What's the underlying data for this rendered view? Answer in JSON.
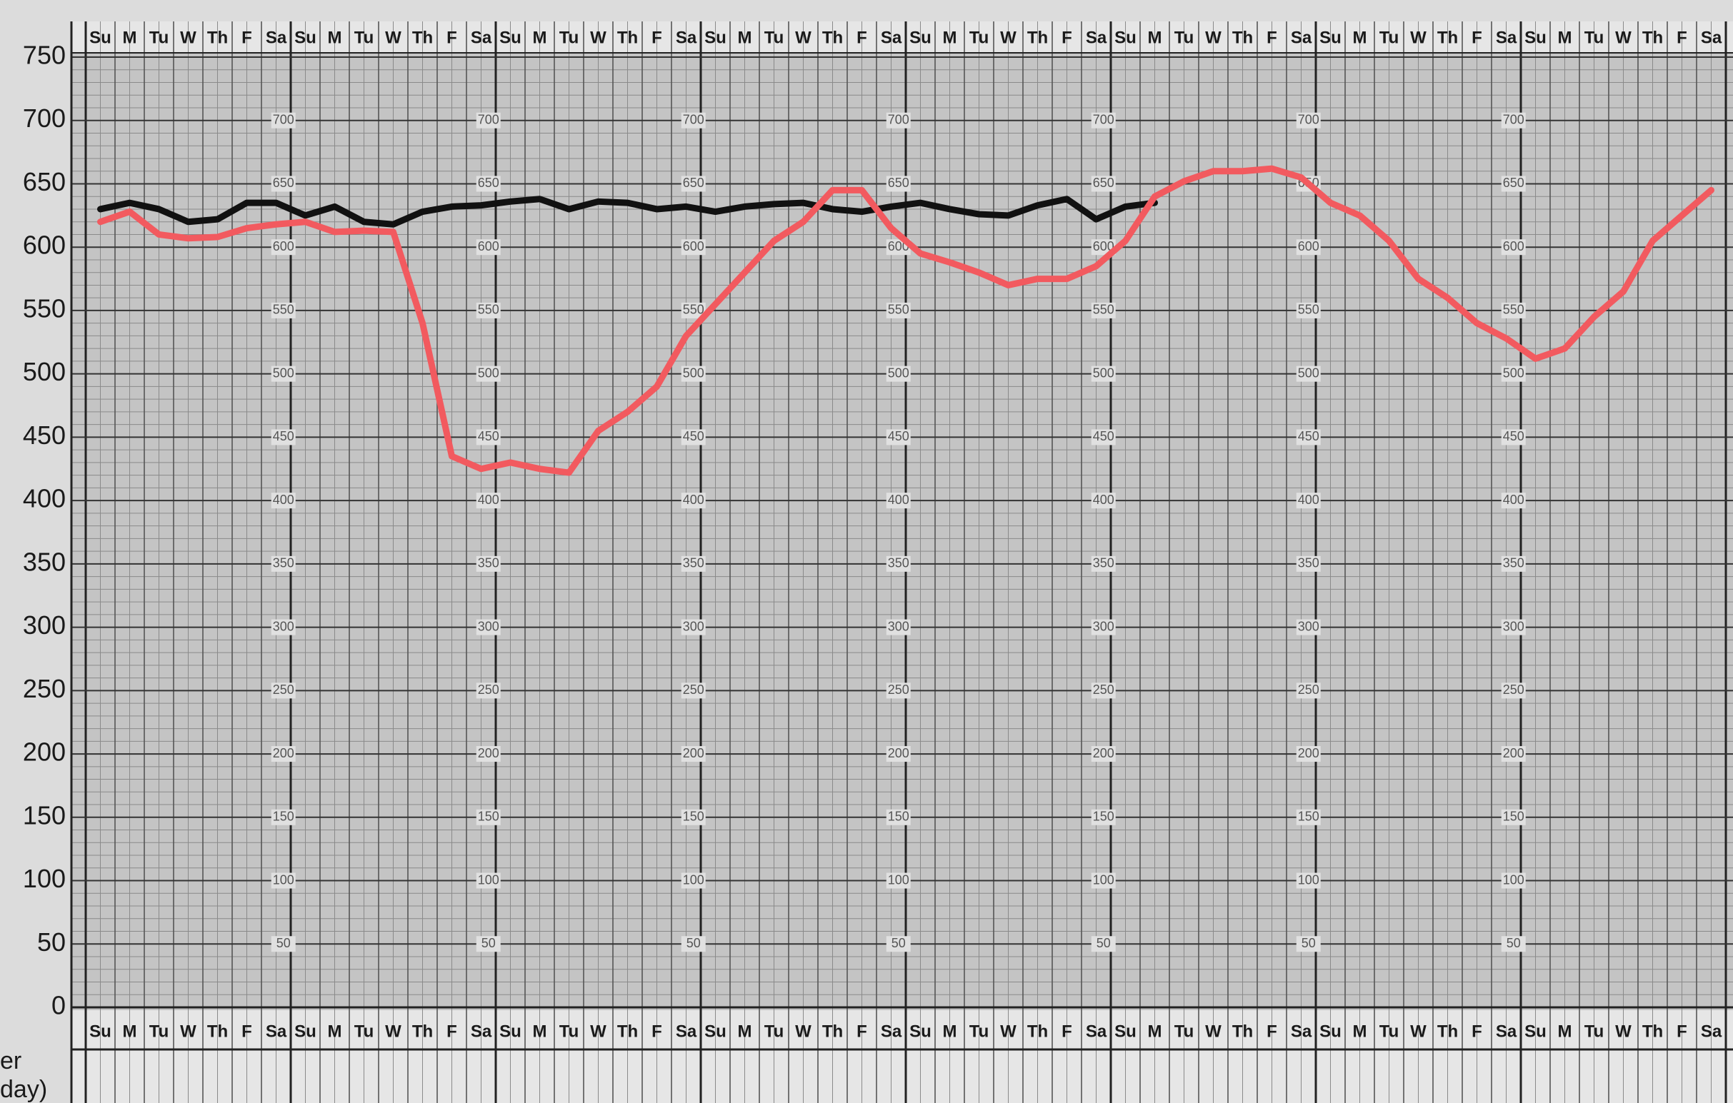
{
  "chart_data": {
    "type": "line",
    "categories": [
      "Su",
      "M",
      "Tu",
      "W",
      "Th",
      "F",
      "Sa",
      "Su",
      "M",
      "Tu",
      "W",
      "Th",
      "F",
      "Sa",
      "Su",
      "M",
      "Tu",
      "W",
      "Th",
      "F",
      "Sa",
      "Su",
      "M",
      "Tu",
      "W",
      "Th",
      "F",
      "Sa",
      "Su",
      "M",
      "Tu",
      "W",
      "Th",
      "F",
      "Sa",
      "Su",
      "M",
      "Tu",
      "W",
      "Th",
      "F",
      "Sa",
      "Su",
      "M",
      "Tu",
      "W",
      "Th",
      "F",
      "Sa",
      "Su",
      "M",
      "Tu",
      "W",
      "Th",
      "F",
      "Sa"
    ],
    "series": [
      {
        "color": "#111111",
        "values": [
          630,
          635,
          630,
          620,
          622,
          635,
          635,
          625,
          632,
          620,
          618,
          628,
          632,
          633,
          636,
          638,
          630,
          636,
          635,
          630,
          632,
          628,
          632,
          634,
          635,
          630,
          628,
          632,
          635,
          630,
          626,
          625,
          633,
          638,
          622,
          632,
          635,
          null,
          null,
          null,
          null,
          null,
          null,
          null,
          null,
          null,
          null,
          null,
          null,
          null,
          null,
          null,
          null,
          null,
          null,
          null
        ]
      },
      {
        "color": "#f25a5f",
        "values": [
          620,
          628,
          610,
          607,
          608,
          615,
          618,
          620,
          612,
          613,
          612,
          540,
          435,
          425,
          430,
          425,
          422,
          455,
          470,
          490,
          530,
          555,
          580,
          605,
          620,
          645,
          645,
          615,
          595,
          588,
          580,
          570,
          575,
          575,
          585,
          605,
          640,
          652,
          660,
          660,
          662,
          655,
          635,
          625,
          605,
          575,
          560,
          540,
          528,
          512,
          520,
          545,
          565,
          605,
          625,
          645
        ]
      }
    ],
    "ylim": [
      0,
      750
    ],
    "yticks": [
      0,
      50,
      100,
      150,
      200,
      250,
      300,
      350,
      400,
      450,
      500,
      550,
      600,
      650,
      700,
      750
    ],
    "grid": true,
    "annotations": [
      "er",
      "day)"
    ]
  }
}
